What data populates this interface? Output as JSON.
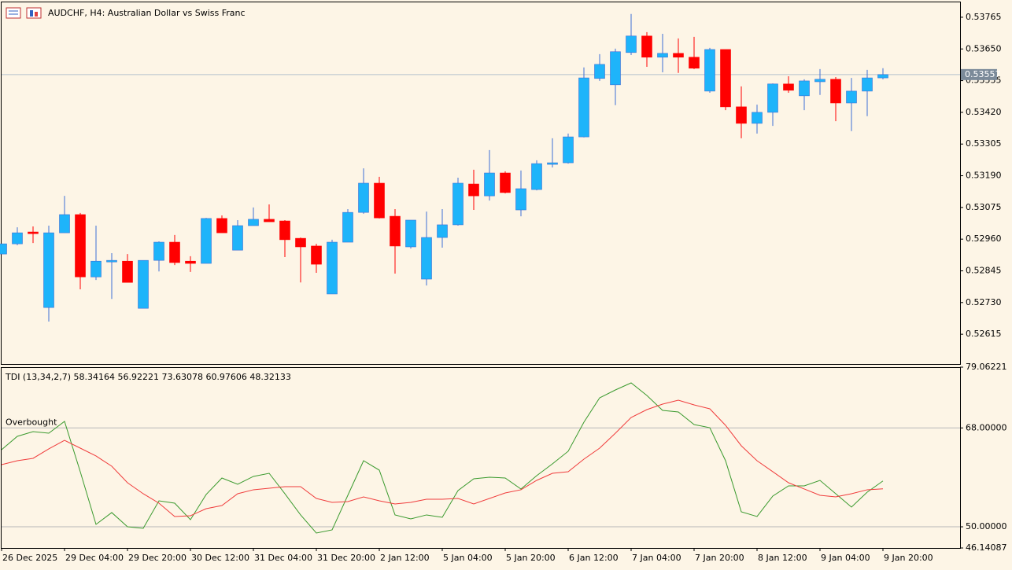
{
  "chart_data": [
    {
      "type": "candlestick",
      "title": "AUDCHF, H4:  Australian Dollar vs Swiss Franc",
      "open": [
        0.52906,
        0.52943,
        0.52986,
        0.52712,
        0.52983,
        0.53049,
        0.52823,
        0.52878,
        0.5288,
        0.52709,
        0.52883,
        0.52949,
        0.5288,
        0.52872,
        0.53035,
        0.5292,
        0.53009,
        0.53032,
        0.53026,
        0.52963,
        0.52935,
        0.52761,
        0.52949,
        0.53057,
        0.53163,
        0.53043,
        0.52932,
        0.52815,
        0.52966,
        0.53012,
        0.5316,
        0.53117,
        0.532,
        0.53066,
        0.5314,
        0.53232,
        0.53237,
        0.53331,
        0.53543,
        0.5352,
        0.53637,
        0.53697,
        0.5362,
        0.53634,
        0.5362,
        0.53497,
        0.53648,
        0.5344,
        0.5338,
        0.5342,
        0.53523,
        0.5348,
        0.53531,
        0.5354,
        0.53454,
        0.53497,
        0.53545
      ],
      "high": [
        0.52943,
        0.53003,
        0.53006,
        0.53009,
        0.53117,
        0.53055,
        0.53009,
        0.52909,
        0.52906,
        0.52883,
        0.52952,
        0.52975,
        0.52898,
        0.53037,
        0.53046,
        0.53029,
        0.53075,
        0.53086,
        0.53029,
        0.52966,
        0.52943,
        0.52958,
        0.53069,
        0.53217,
        0.53186,
        0.53069,
        0.53029,
        0.5306,
        0.53069,
        0.53183,
        0.53212,
        0.53283,
        0.53206,
        0.53209,
        0.53246,
        0.53326,
        0.53343,
        0.53583,
        0.53631,
        0.53651,
        0.53777,
        0.53711,
        0.53705,
        0.53688,
        0.53694,
        0.53654,
        0.53648,
        0.53514,
        0.53448,
        0.53525,
        0.53551,
        0.5354,
        0.53577,
        0.53548,
        0.53545,
        0.53574,
        0.5358
      ],
      "low": [
        0.52906,
        0.52938,
        0.52946,
        0.52661,
        0.52983,
        0.52778,
        0.52812,
        0.52743,
        0.52803,
        0.52709,
        0.52843,
        0.52866,
        0.52841,
        0.52872,
        0.52983,
        0.5292,
        0.53009,
        0.53023,
        0.52895,
        0.52803,
        0.52838,
        0.52761,
        0.52949,
        0.53052,
        0.53035,
        0.52835,
        0.52926,
        0.52792,
        0.52929,
        0.53009,
        0.53066,
        0.531,
        0.53126,
        0.53043,
        0.53137,
        0.5322,
        0.53234,
        0.53329,
        0.53534,
        0.53446,
        0.53628,
        0.53585,
        0.53565,
        0.53563,
        0.53577,
        0.53491,
        0.53428,
        0.53326,
        0.53343,
        0.53371,
        0.53491,
        0.53428,
        0.53483,
        0.53388,
        0.53352,
        0.53406,
        0.5354
      ],
      "close": [
        0.52943,
        0.52983,
        0.5298,
        0.52983,
        0.53049,
        0.52823,
        0.5288,
        0.52883,
        0.52803,
        0.52883,
        0.52949,
        0.52875,
        0.52872,
        0.53035,
        0.52983,
        0.53009,
        0.53032,
        0.53023,
        0.52958,
        0.52932,
        0.52869,
        0.52949,
        0.53057,
        0.53163,
        0.53037,
        0.52935,
        0.53029,
        0.52966,
        0.53012,
        0.53163,
        0.53117,
        0.532,
        0.53129,
        0.53143,
        0.53234,
        0.53237,
        0.53331,
        0.53545,
        0.53594,
        0.5364,
        0.53697,
        0.5362,
        0.53634,
        0.5362,
        0.5358,
        0.53648,
        0.5344,
        0.5338,
        0.5342,
        0.53523,
        0.535,
        0.53534,
        0.5354,
        0.53454,
        0.53497,
        0.53545,
        0.53557
      ],
      "up_color": "#1eb4fa",
      "down_color": "#ff0000",
      "up_wick_color": "#3d6fd6",
      "down_wick_color": "#ff0000",
      "last_price": 0.53557,
      "ylim": [
        0.52507,
        0.53819
      ],
      "yticks": [
        0.53765,
        {
          "value": 0.5365,
          "label": "0.53650"
        },
        0.53535,
        {
          "value": 0.5342,
          "label": "0.53420"
        },
        0.53305,
        {
          "value": 0.5319,
          "label": "0.53190"
        },
        0.53075,
        {
          "value": 0.5296,
          "label": "0.52960"
        },
        0.52845,
        {
          "value": 0.5273,
          "label": "0.52730"
        },
        0.52615
      ]
    },
    {
      "type": "line",
      "title": "TDI (13,34,2,7) 58.34164 56.92221 73.63078 60.97606 48.32133",
      "series": [
        {
          "color": "#3a9a2e",
          "values": [
            64.03,
            66.47,
            67.33,
            67.04,
            69.19,
            60.03,
            50.44,
            52.59,
            50.01,
            49.72,
            54.73,
            54.3,
            51.3,
            55.88,
            58.88,
            57.74,
            59.17,
            59.74,
            56.02,
            52.16,
            48.87,
            49.44,
            55.73,
            62.03,
            60.31,
            52.16,
            51.44,
            52.16,
            51.73,
            56.59,
            58.74,
            59.03,
            58.88,
            56.88,
            59.31,
            61.46,
            63.75,
            69.04,
            73.48,
            74.91,
            76.2,
            73.91,
            71.19,
            70.9,
            68.61,
            68.04,
            62.03,
            52.73,
            51.87,
            55.59,
            57.45,
            57.45,
            58.45,
            56.02,
            53.59,
            56.31,
            58.34
          ]
        },
        {
          "color": "#f03c3c",
          "values": [
            61.32,
            62.03,
            62.46,
            64.18,
            65.75,
            64.32,
            62.89,
            61.03,
            58.02,
            56.02,
            54.3,
            51.87,
            52.01,
            53.3,
            53.87,
            56.02,
            56.74,
            57.02,
            57.31,
            57.31,
            55.16,
            54.45,
            54.59,
            55.45,
            54.73,
            54.16,
            54.45,
            55.02,
            55.02,
            55.16,
            54.16,
            55.16,
            56.16,
            56.74,
            58.45,
            59.74,
            60.03,
            62.32,
            64.32,
            67.04,
            69.9,
            71.33,
            72.33,
            73.05,
            72.19,
            71.48,
            68.47,
            64.75,
            62.03,
            60.03,
            58.02,
            56.88,
            55.73,
            55.45,
            56.02,
            56.74,
            56.92
          ]
        }
      ],
      "levels": [
        {
          "value": 68,
          "label": "Overbought"
        },
        {
          "value": 50
        }
      ],
      "ylim": [
        46.14087,
        79.06221
      ],
      "yticks": [
        79.06221,
        {
          "value": 68,
          "label": "68.00000"
        },
        {
          "value": 50,
          "label": "50.00000"
        },
        46.14087
      ],
      "x_labels": [
        "26 Dec 2025",
        "29 Dec 04:00",
        "29 Dec 20:00",
        "30 Dec 12:00",
        "31 Dec 04:00",
        "31 Dec 20:00",
        "2 Jan 12:00",
        "5 Jan 04:00",
        "5 Jan 20:00",
        "6 Jan 12:00",
        "7 Jan 04:00",
        "7 Jan 20:00",
        "8 Jan 12:00",
        "9 Jan 04:00",
        "9 Jan 20:00"
      ]
    }
  ]
}
